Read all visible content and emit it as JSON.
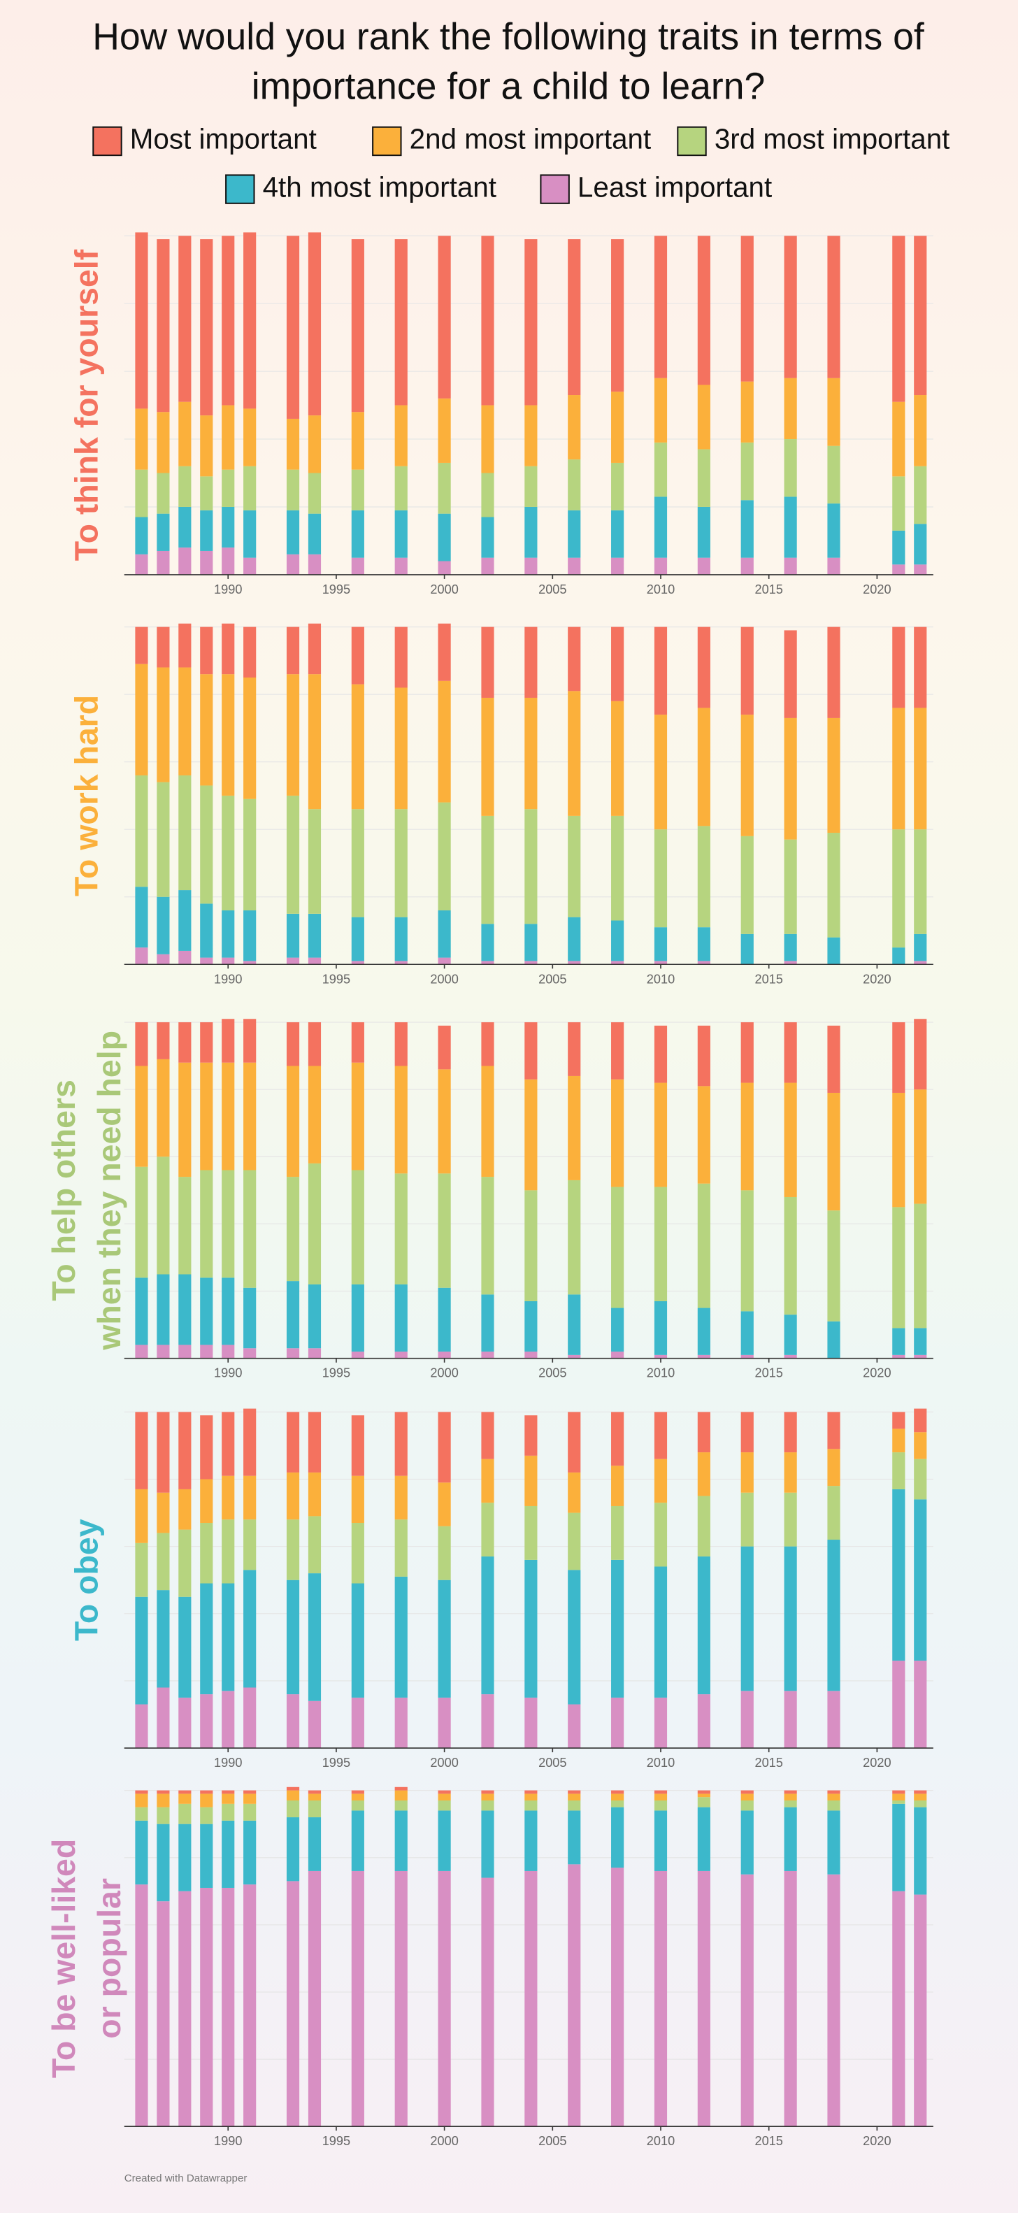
{
  "title": [
    "How would you rank the following traits in terms of",
    "importance for a child to learn?"
  ],
  "credit": "Created with Datawrapper",
  "chart_data": [
    {
      "type": "bar",
      "stacked": true,
      "title": [
        "To think for yourself"
      ],
      "title_color": "#f4725f",
      "x": [
        1986,
        1987,
        1988,
        1989,
        1990,
        1991,
        1993,
        1994,
        1996,
        1998,
        2000,
        2002,
        2004,
        2006,
        2008,
        2010,
        2012,
        2014,
        2016,
        2018,
        2021,
        2022
      ],
      "xlim": [
        1985.2,
        2022.6
      ],
      "xticks": [
        1990,
        1995,
        2000,
        2005,
        2010,
        2015,
        2020
      ],
      "ylim": [
        0,
        100
      ],
      "yticks": [
        0,
        20,
        40,
        60,
        80,
        100
      ],
      "grid": true,
      "series": [
        {
          "name": "Most important",
          "color": "#f4725f",
          "values": [
            52,
            51,
            49,
            52,
            50,
            52,
            54,
            54,
            51,
            49,
            48,
            50,
            49,
            46,
            45,
            42,
            44,
            43,
            42,
            42,
            49,
            47
          ]
        },
        {
          "name": "2nd most important",
          "color": "#fbb03b",
          "values": [
            18,
            18,
            19,
            18,
            19,
            17,
            15,
            17,
            17,
            18,
            19,
            20,
            18,
            19,
            21,
            19,
            19,
            18,
            18,
            20,
            22,
            21
          ]
        },
        {
          "name": "3rd most important",
          "color": "#b6d47f",
          "values": [
            14,
            12,
            12,
            10,
            11,
            13,
            12,
            12,
            12,
            13,
            15,
            13,
            12,
            15,
            14,
            16,
            17,
            17,
            17,
            17,
            16,
            17
          ]
        },
        {
          "name": "4th most important",
          "color": "#3cb8cb",
          "values": [
            11,
            11,
            12,
            12,
            12,
            14,
            13,
            12,
            14,
            14,
            14,
            12,
            15,
            14,
            14,
            18,
            15,
            17,
            18,
            16,
            10,
            12
          ]
        },
        {
          "name": "Least important",
          "color": "#d88fc3",
          "values": [
            6,
            7,
            8,
            7,
            8,
            5,
            6,
            6,
            5,
            5,
            4,
            5,
            5,
            5,
            5,
            5,
            5,
            5,
            5,
            5,
            3,
            3
          ]
        }
      ]
    },
    {
      "type": "bar",
      "stacked": true,
      "title": [
        "To work hard"
      ],
      "title_color": "#fbb03b",
      "x": [
        1986,
        1987,
        1988,
        1989,
        1990,
        1991,
        1993,
        1994,
        1996,
        1998,
        2000,
        2002,
        2004,
        2006,
        2008,
        2010,
        2012,
        2014,
        2016,
        2018,
        2021,
        2022
      ],
      "xlim": [
        1985.2,
        2022.6
      ],
      "xticks": [
        1990,
        1995,
        2000,
        2005,
        2010,
        2015,
        2020
      ],
      "ylim": [
        0,
        100
      ],
      "yticks": [
        0,
        20,
        40,
        60,
        80,
        100
      ],
      "grid": true,
      "series": [
        {
          "name": "Most important",
          "color": "#f4725f",
          "values": [
            11,
            12,
            13,
            14,
            15,
            15,
            14,
            15,
            17,
            18,
            17,
            21,
            21,
            19,
            22,
            26,
            24,
            26,
            26,
            27,
            24,
            24
          ]
        },
        {
          "name": "2nd most important",
          "color": "#fbb03b",
          "values": [
            33,
            34,
            32,
            33,
            36,
            36,
            36,
            40,
            37,
            36,
            36,
            35,
            33,
            37,
            34,
            34,
            35,
            36,
            36,
            34,
            36,
            36
          ]
        },
        {
          "name": "3rd most important",
          "color": "#b6d47f",
          "values": [
            33,
            34,
            34,
            35,
            34,
            33,
            35,
            31,
            32,
            32,
            32,
            32,
            34,
            30,
            31,
            29,
            30,
            29,
            28,
            31,
            35,
            31
          ]
        },
        {
          "name": "4th most important",
          "color": "#3cb8cb",
          "values": [
            18,
            17,
            18,
            16,
            14,
            15,
            13,
            13,
            13,
            13,
            14,
            11,
            11,
            13,
            12,
            10,
            10,
            9,
            8,
            8,
            5,
            8
          ]
        },
        {
          "name": "Least important",
          "color": "#d88fc3",
          "values": [
            5,
            3,
            4,
            2,
            2,
            1,
            2,
            2,
            1,
            1,
            2,
            1,
            1,
            1,
            1,
            1,
            1,
            0,
            1,
            0,
            0,
            1
          ]
        }
      ]
    },
    {
      "type": "bar",
      "stacked": true,
      "title": [
        "To help others",
        "when they need help"
      ],
      "title_color": "#a9c878",
      "x": [
        1986,
        1987,
        1988,
        1989,
        1990,
        1991,
        1993,
        1994,
        1996,
        1998,
        2000,
        2002,
        2004,
        2006,
        2008,
        2010,
        2012,
        2014,
        2016,
        2018,
        2021,
        2022
      ],
      "xlim": [
        1985.2,
        2022.6
      ],
      "xticks": [
        1990,
        1995,
        2000,
        2005,
        2010,
        2015,
        2020
      ],
      "ylim": [
        0,
        100
      ],
      "yticks": [
        0,
        20,
        40,
        60,
        80,
        100
      ],
      "grid": true,
      "series": [
        {
          "name": "Most important",
          "color": "#f4725f",
          "values": [
            13,
            11,
            12,
            12,
            13,
            13,
            13,
            13,
            12,
            13,
            13,
            13,
            17,
            16,
            17,
            17,
            18,
            18,
            18,
            20,
            21,
            21
          ]
        },
        {
          "name": "2nd most important",
          "color": "#fbb03b",
          "values": [
            30,
            29,
            34,
            32,
            32,
            32,
            33,
            29,
            32,
            32,
            31,
            33,
            33,
            31,
            32,
            31,
            29,
            32,
            34,
            35,
            34,
            34
          ]
        },
        {
          "name": "3rd most important",
          "color": "#b6d47f",
          "values": [
            33,
            35,
            29,
            32,
            32,
            35,
            31,
            36,
            34,
            33,
            34,
            35,
            33,
            34,
            36,
            34,
            37,
            36,
            35,
            33,
            36,
            37
          ]
        },
        {
          "name": "4th most important",
          "color": "#3cb8cb",
          "values": [
            20,
            21,
            21,
            20,
            20,
            18,
            20,
            19,
            20,
            20,
            19,
            17,
            15,
            18,
            13,
            16,
            14,
            13,
            12,
            11,
            8,
            8
          ]
        },
        {
          "name": "Least important",
          "color": "#d88fc3",
          "values": [
            4,
            4,
            4,
            4,
            4,
            3,
            3,
            3,
            2,
            2,
            2,
            2,
            2,
            1,
            2,
            1,
            1,
            1,
            1,
            0,
            1,
            1
          ]
        }
      ]
    },
    {
      "type": "bar",
      "stacked": true,
      "title": [
        "To obey"
      ],
      "title_color": "#3cb8cb",
      "x": [
        1986,
        1987,
        1988,
        1989,
        1990,
        1991,
        1993,
        1994,
        1996,
        1998,
        2000,
        2002,
        2004,
        2006,
        2008,
        2010,
        2012,
        2014,
        2016,
        2018,
        2021,
        2022
      ],
      "xlim": [
        1985.2,
        2022.6
      ],
      "xticks": [
        1990,
        1995,
        2000,
        2005,
        2010,
        2015,
        2020
      ],
      "ylim": [
        0,
        100
      ],
      "yticks": [
        0,
        20,
        40,
        60,
        80,
        100
      ],
      "grid": true,
      "series": [
        {
          "name": "Most important",
          "color": "#f4725f",
          "values": [
            23,
            24,
            23,
            19,
            19,
            20,
            18,
            18,
            18,
            19,
            21,
            14,
            12,
            18,
            16,
            14,
            12,
            12,
            12,
            11,
            5,
            7
          ]
        },
        {
          "name": "2nd most important",
          "color": "#fbb03b",
          "values": [
            16,
            12,
            12,
            13,
            13,
            13,
            14,
            13,
            14,
            13,
            13,
            13,
            15,
            12,
            12,
            13,
            13,
            12,
            12,
            11,
            7,
            8
          ]
        },
        {
          "name": "3rd most important",
          "color": "#b6d47f",
          "values": [
            16,
            17,
            20,
            18,
            19,
            15,
            18,
            17,
            18,
            17,
            16,
            16,
            16,
            17,
            16,
            19,
            18,
            16,
            16,
            16,
            11,
            12
          ]
        },
        {
          "name": "4th most important",
          "color": "#3cb8cb",
          "values": [
            32,
            29,
            30,
            33,
            32,
            35,
            34,
            38,
            34,
            36,
            35,
            41,
            41,
            40,
            41,
            39,
            41,
            43,
            43,
            45,
            51,
            48
          ]
        },
        {
          "name": "Least important",
          "color": "#d88fc3",
          "values": [
            13,
            18,
            15,
            16,
            17,
            18,
            16,
            14,
            15,
            15,
            15,
            16,
            15,
            13,
            15,
            15,
            16,
            17,
            17,
            17,
            26,
            26
          ]
        }
      ]
    },
    {
      "type": "bar",
      "stacked": true,
      "title": [
        "To be well-liked",
        "or popular"
      ],
      "title_color": "#d088bb",
      "x": [
        1986,
        1987,
        1988,
        1989,
        1990,
        1991,
        1993,
        1994,
        1996,
        1998,
        2000,
        2002,
        2004,
        2006,
        2008,
        2010,
        2012,
        2014,
        2016,
        2018,
        2021,
        2022
      ],
      "xlim": [
        1985.2,
        2022.6
      ],
      "xticks": [
        1990,
        1995,
        2000,
        2005,
        2010,
        2015,
        2020
      ],
      "ylim": [
        0,
        100
      ],
      "yticks": [
        0,
        20,
        40,
        60,
        80,
        100
      ],
      "grid": true,
      "series": [
        {
          "name": "Most important",
          "color": "#f4725f",
          "values": [
            1,
            1,
            1,
            1,
            1,
            1,
            1,
            1,
            1,
            1,
            1,
            1,
            1,
            1,
            1,
            1,
            1,
            1,
            1,
            1,
            1,
            1
          ]
        },
        {
          "name": "2nd most important",
          "color": "#fbb03b",
          "values": [
            4,
            4,
            3,
            4,
            3,
            3,
            3,
            2,
            2,
            3,
            2,
            2,
            2,
            2,
            2,
            2,
            1,
            2,
            2,
            2,
            2,
            2
          ]
        },
        {
          "name": "3rd most important",
          "color": "#b6d47f",
          "values": [
            4,
            5,
            6,
            5,
            5,
            5,
            5,
            5,
            3,
            3,
            3,
            3,
            3,
            3,
            2,
            3,
            3,
            3,
            2,
            3,
            1,
            2
          ]
        },
        {
          "name": "4th most important",
          "color": "#3cb8cb",
          "values": [
            19,
            23,
            20,
            19,
            20,
            19,
            19,
            16,
            18,
            18,
            18,
            20,
            18,
            16,
            18,
            18,
            19,
            19,
            19,
            19,
            26,
            26
          ]
        },
        {
          "name": "Least important",
          "color": "#d88fc3",
          "values": [
            72,
            67,
            70,
            71,
            71,
            72,
            73,
            76,
            76,
            76,
            76,
            74,
            76,
            78,
            77,
            76,
            76,
            75,
            76,
            75,
            70,
            69
          ]
        }
      ]
    }
  ]
}
